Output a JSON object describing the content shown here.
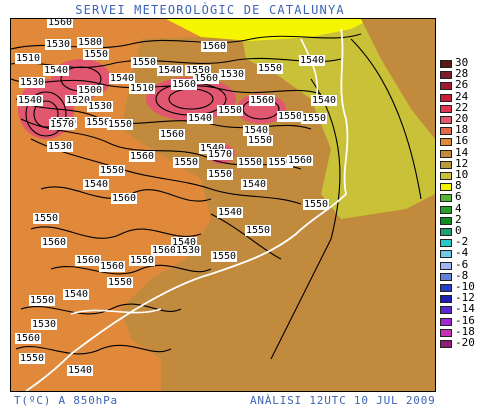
{
  "header": {
    "title": "SERVEI METEOROLÒGIC DE CATALUNYA"
  },
  "footer": {
    "variable": "T(ºC) A 850hPa",
    "analysis": "ANÀLISI 12UTC 10 JUL 2009"
  },
  "colors": {
    "orange_fill": "#e0893a",
    "brown_fill": "#c28a3c",
    "olive_fill": "#c9c137",
    "yellow_fill": "#f5f500",
    "red_fill": "#e0576f",
    "coast_line": "#ffffff"
  },
  "legend": [
    {
      "label": "30",
      "color": "#5a1a1a"
    },
    {
      "label": "28",
      "color": "#7a1f2a"
    },
    {
      "label": "26",
      "color": "#9e1a30"
    },
    {
      "label": "24",
      "color": "#c81f3a"
    },
    {
      "label": "22",
      "color": "#e0344f"
    },
    {
      "label": "20",
      "color": "#e0576f"
    },
    {
      "label": "18",
      "color": "#e06a4a"
    },
    {
      "label": "16",
      "color": "#e0893a"
    },
    {
      "label": "14",
      "color": "#c28a3c"
    },
    {
      "label": "12",
      "color": "#b89a3a"
    },
    {
      "label": "10",
      "color": "#c9c137"
    },
    {
      "label": "8",
      "color": "#f5f500"
    },
    {
      "label": "6",
      "color": "#5ab43c"
    },
    {
      "label": "4",
      "color": "#28a028"
    },
    {
      "label": "2",
      "color": "#128c1e"
    },
    {
      "label": "0",
      "color": "#1ea06e"
    },
    {
      "label": "-2",
      "color": "#28c8c8"
    },
    {
      "label": "-4",
      "color": "#6ec8e6"
    },
    {
      "label": "-6",
      "color": "#a0b4f0"
    },
    {
      "label": "-8",
      "color": "#6482dc"
    },
    {
      "label": "-10",
      "color": "#283cc8"
    },
    {
      "label": "-12",
      "color": "#1e1eb4"
    },
    {
      "label": "-14",
      "color": "#5a28d2"
    },
    {
      "label": "-16",
      "color": "#a028d2"
    },
    {
      "label": "-18",
      "color": "#c832b4"
    },
    {
      "label": "-20",
      "color": "#8c1e78"
    }
  ],
  "contour_labels": [
    "1560",
    "1580",
    "1530",
    "1550",
    "1510",
    "1540",
    "1560",
    "1530",
    "1540",
    "1550",
    "1540",
    "1500",
    "1520",
    "1530",
    "1540",
    "1550",
    "1560",
    "1530",
    "1510",
    "1550",
    "1540",
    "1570",
    "1550",
    "1550",
    "1560",
    "1550",
    "1540",
    "1560",
    "1530",
    "1550",
    "1540",
    "1550",
    "1570",
    "1540",
    "1550",
    "1560",
    "1540",
    "1550",
    "1560",
    "1570",
    "1550",
    "1540",
    "1550",
    "1550",
    "1560",
    "1550",
    "1540",
    "1560",
    "1550",
    "1540",
    "1550",
    "1560",
    "1550",
    "1540",
    "1560",
    "1550",
    "1530",
    "1560",
    "1550",
    "1560",
    "1550",
    "1540",
    "1550",
    "1560",
    "1550",
    "1530",
    "1540"
  ]
}
